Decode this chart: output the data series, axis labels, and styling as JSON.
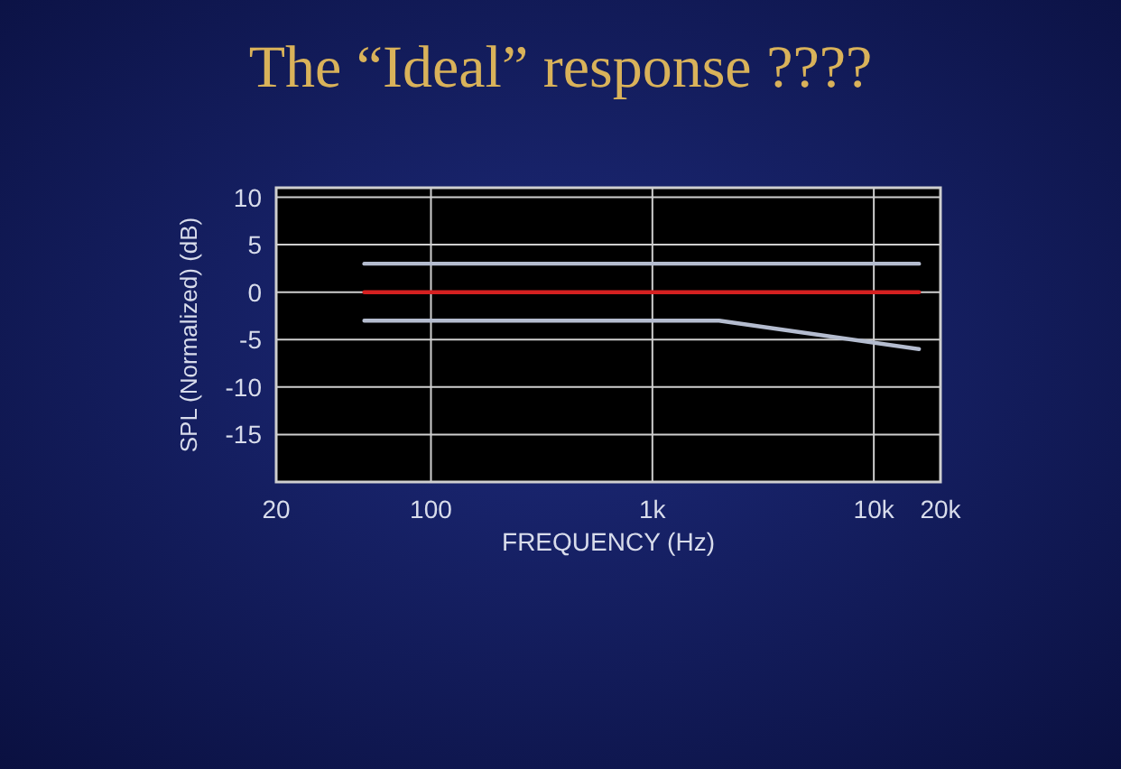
{
  "chart_data": {
    "type": "line",
    "title": "The “Ideal” response ????",
    "xlabel": "FREQUENCY (Hz)",
    "ylabel": "SPL (Normalized)  (dB)",
    "log": "x",
    "grid": true,
    "marker": "none",
    "line_style": "solid",
    "xlim": [
      20,
      20000
    ],
    "xticks": [
      20,
      100,
      {
        "value": 1000,
        "label": "1k"
      },
      {
        "value": 10000,
        "label": "10k"
      },
      {
        "value": 20000,
        "label": "20k"
      }
    ],
    "ylim": [
      -20,
      11
    ],
    "yticks": [
      10,
      5,
      0,
      -5,
      -10,
      -15
    ],
    "series": [
      {
        "color": "#b4bccf",
        "x": [
          50,
          16000
        ],
        "values": [
          3,
          3
        ]
      },
      {
        "color": "#d42020",
        "x": [
          50,
          16000
        ],
        "values": [
          0,
          0
        ]
      },
      {
        "color": "#b4bccf",
        "x": [
          50,
          2000,
          16000
        ],
        "values": [
          -3,
          -3,
          -6
        ]
      }
    ]
  }
}
